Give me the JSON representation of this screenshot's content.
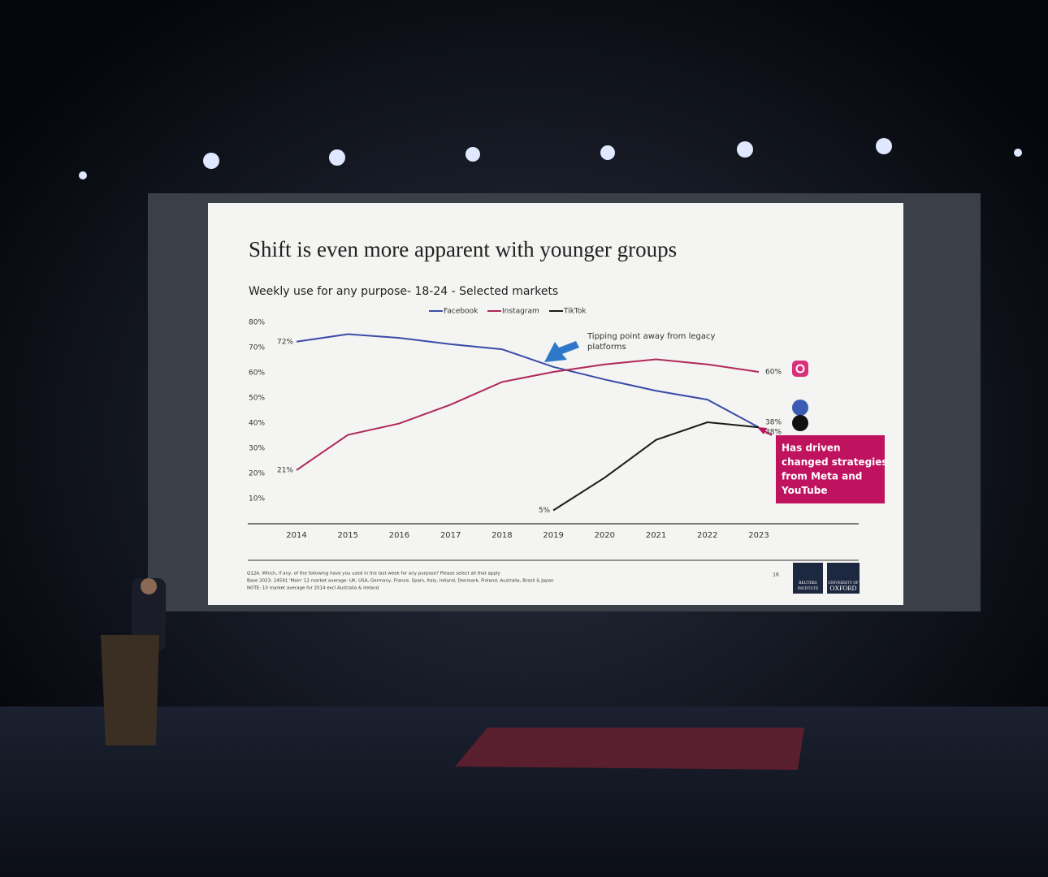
{
  "chart_data": {
    "type": "line",
    "title": "Shift is even more apparent with younger groups",
    "subtitle": "Weekly use for any purpose- 18-24  - Selected markets",
    "categories": [
      "2014",
      "2015",
      "2016",
      "2017",
      "2018",
      "2019",
      "2020",
      "2021",
      "2022",
      "2023"
    ],
    "series": [
      {
        "name": "Facebook",
        "color": "#3b4ba8",
        "values": [
          72,
          75,
          73.5,
          71,
          69,
          62,
          57,
          52.5,
          49,
          38
        ],
        "value_labels": [
          "72%",
          null,
          null,
          null,
          null,
          null,
          null,
          null,
          null,
          "38%"
        ]
      },
      {
        "name": "Instagram",
        "color": "#b0285a",
        "values": [
          21,
          35,
          39.5,
          47,
          56,
          60,
          63,
          65,
          63,
          60
        ],
        "value_labels": [
          "21%",
          null,
          null,
          null,
          null,
          null,
          null,
          null,
          null,
          "60%"
        ]
      },
      {
        "name": "TikTok",
        "color": "#1a1a1a",
        "values": [
          null,
          null,
          null,
          null,
          null,
          5,
          18,
          33,
          40,
          38
        ],
        "value_labels": [
          null,
          null,
          null,
          null,
          null,
          "5%",
          null,
          null,
          null,
          "38%"
        ]
      }
    ],
    "ylim": [
      0,
      80
    ],
    "yticks": [
      {
        "value": 10,
        "label": "10%"
      },
      {
        "value": 20,
        "label": "20%"
      },
      {
        "value": 30,
        "label": "30%"
      },
      {
        "value": 40,
        "label": "40%"
      },
      {
        "value": 50,
        "label": "50%"
      },
      {
        "value": 60,
        "label": "60%"
      },
      {
        "value": 70,
        "label": "70%"
      },
      {
        "value": 80,
        "label": "80%"
      }
    ],
    "grid": false,
    "legend": "top",
    "annotations": [
      [
        "Tipping point away from legacy",
        "platforms"
      ],
      [
        "Has driven",
        "changed strategies",
        "from Meta and",
        "YouTube"
      ]
    ],
    "footnotes": [
      "Q12A. Which, if any, of the following have you used in the last week for any purpose? Please select all that apply",
      "Base 2023: 24591 'Main' 12 market average: UK, USA, Germany, France, Spain, Italy, Ireland, Denmark, Finland, Australia, Brazil & Japan",
      "NOTE: 10 market average for 2014 excl Australia & Ireland"
    ],
    "page_number": "16",
    "logos": [
      [
        "REUTERS",
        "INSTITUTE"
      ],
      [
        "UNIVERSITY OF",
        "OXFORD"
      ]
    ]
  }
}
